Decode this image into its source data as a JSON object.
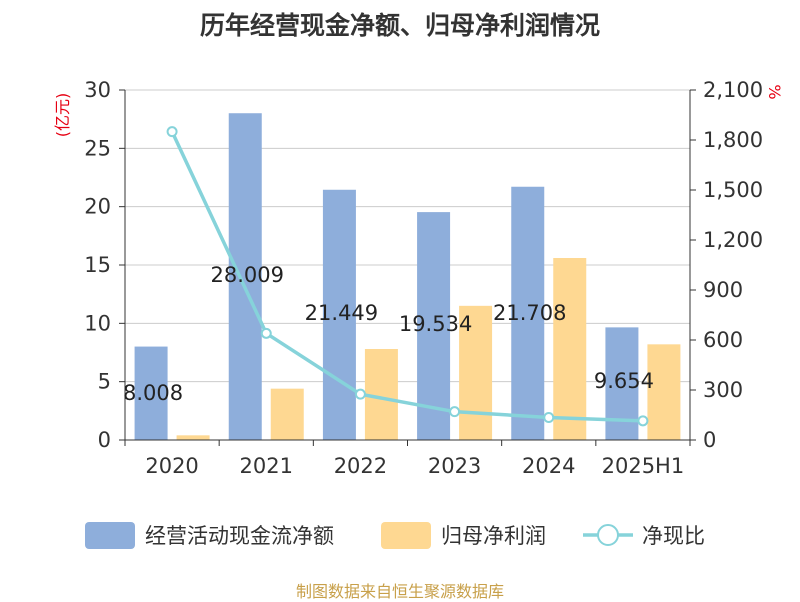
{
  "title": "历年经营现金净额、归母净利润情况",
  "source": "制图数据来自恒生聚源数据库",
  "colors": {
    "bar1": "#8eaedb",
    "bar2": "#fed892",
    "line": "#86d3da",
    "grid": "#cccccc",
    "axis": "#333333",
    "unit": "#e60012"
  },
  "chart_data": {
    "type": "bar",
    "categories": [
      "2020",
      "2021",
      "2022",
      "2023",
      "2024",
      "2025H1"
    ],
    "y_left": {
      "unit": "(亿元)",
      "ylim": [
        0,
        30
      ],
      "ticks": [
        "0",
        "5",
        "10",
        "15",
        "20",
        "25",
        "30"
      ]
    },
    "y_right": {
      "unit": "%",
      "ylim": [
        0,
        2100
      ],
      "ticks": [
        "0",
        "300",
        "600",
        "900",
        "1,200",
        "1,500",
        "1,800",
        "2,100"
      ]
    },
    "series": [
      {
        "name": "经营活动现金流净额",
        "type": "bar",
        "axis": "left",
        "values": [
          8.008,
          28.009,
          21.449,
          19.534,
          21.708,
          9.654
        ],
        "labels": [
          "8.008",
          "28.009",
          "21.449",
          "19.534",
          "21.708",
          "9.654"
        ]
      },
      {
        "name": "归母净利润",
        "type": "bar",
        "axis": "left",
        "values": [
          0.4,
          4.4,
          7.8,
          11.5,
          15.6,
          8.2
        ]
      },
      {
        "name": "净现比",
        "type": "line",
        "axis": "right",
        "values": [
          1850,
          640,
          275,
          170,
          135,
          115
        ]
      }
    ],
    "grid": true,
    "legend": "bottom"
  }
}
